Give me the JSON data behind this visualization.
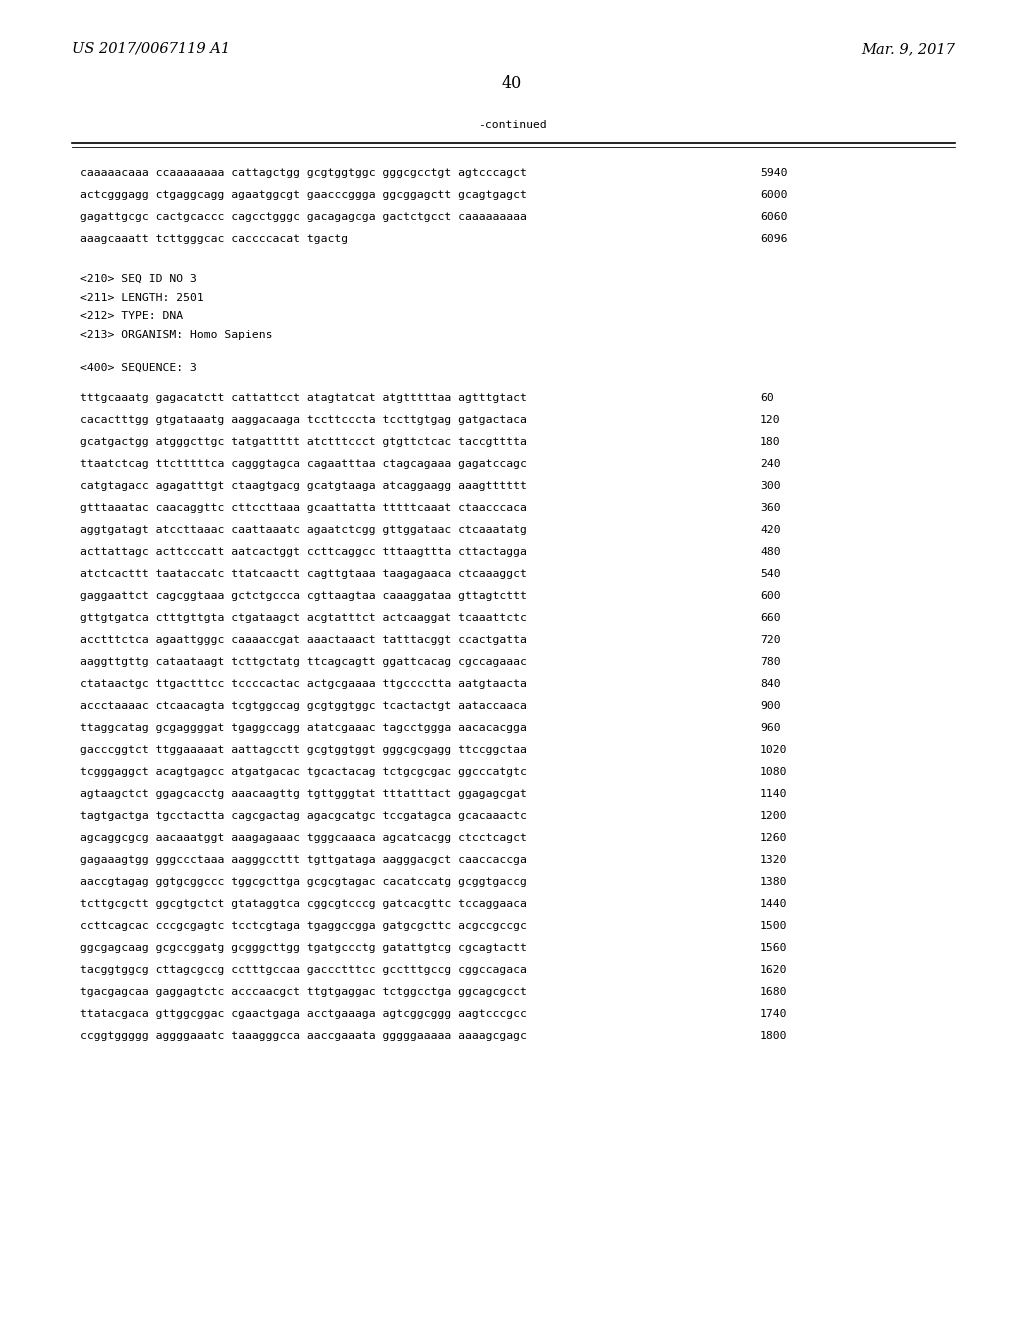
{
  "header_left": "US 2017/0067119 A1",
  "header_right": "Mar. 9, 2017",
  "page_number": "40",
  "continued_label": "-continued",
  "background_color": "#ffffff",
  "text_color": "#000000",
  "font_size_header": 10.5,
  "font_size_body": 8.2,
  "font_size_page": 11.5,
  "sequence_lines_top": [
    [
      "caaaaacaaa ccaaaaaaaa cattagctgg gcgtggtggc gggcgcctgt agtcccagct",
      "5940"
    ],
    [
      "actcgggagg ctgaggcagg agaatggcgt gaacccggga ggcggagctt gcagtgagct",
      "6000"
    ],
    [
      "gagattgcgc cactgcaccc cagcctgggc gacagagcga gactctgcct caaaaaaaaa",
      "6060"
    ],
    [
      "aaagcaaatt tcttgggcac caccccacat tgactg",
      "6096"
    ]
  ],
  "seq_info_lines": [
    "<210> SEQ ID NO 3",
    "<211> LENGTH: 2501",
    "<212> TYPE: DNA",
    "<213> ORGANISM: Homo Sapiens"
  ],
  "seq_label": "<400> SEQUENCE: 3",
  "sequence_lines_main": [
    [
      "tttgcaaatg gagacatctt cattattcct atagtatcat atgtttttaa agtttgtact",
      "60"
    ],
    [
      "cacactttgg gtgataaatg aaggacaaga tccttcccta tccttgtgag gatgactaca",
      "120"
    ],
    [
      "gcatgactgg atgggcttgc tatgattttt atctttccct gtgttctcac taccgtttta",
      "180"
    ],
    [
      "ttaatctcag ttctttttca cagggtagca cagaatttaa ctagcagaaa gagatccagc",
      "240"
    ],
    [
      "catgtagacc agagatttgt ctaagtgacg gcatgtaaga atcaggaagg aaagtttttt",
      "300"
    ],
    [
      "gtttaaatac caacaggttc cttccttaaa gcaattatta tttttcaaat ctaacccaca",
      "360"
    ],
    [
      "aggtgatagt atccttaaac caattaaatc agaatctcgg gttggataac ctcaaatatg",
      "420"
    ],
    [
      "acttattagc acttcccatt aatcactggt ccttcaggcc tttaagttta cttactagga",
      "480"
    ],
    [
      "atctcacttt taataccatc ttatcaactt cagttgtaaa taagagaaca ctcaaaggct",
      "540"
    ],
    [
      "gaggaattct cagcggtaaa gctctgccca cgttaagtaa caaaggataa gttagtcttt",
      "600"
    ],
    [
      "gttgtgatca ctttgttgta ctgataagct acgtatttct actcaaggat tcaaattctc",
      "660"
    ],
    [
      "acctttctca agaattgggc caaaaccgat aaactaaact tatttacggt ccactgatta",
      "720"
    ],
    [
      "aaggttgttg cataataagt tcttgctatg ttcagcagtt ggattcacag cgccagaaac",
      "780"
    ],
    [
      "ctataactgc ttgactttcc tccccactac actgcgaaaa ttgcccctta aatgtaacta",
      "840"
    ],
    [
      "accctaaaac ctcaacagta tcgtggccag gcgtggtggc tcactactgt aataccaaca",
      "900"
    ],
    [
      "ttaggcatag gcgaggggat tgaggccagg atatcgaaac tagcctggga aacacacgga",
      "960"
    ],
    [
      "gacccggtct ttggaaaaat aattagcctt gcgtggtggt gggcgcgagg ttccggctaa",
      "1020"
    ],
    [
      "tcgggaggct acagtgagcc atgatgacac tgcactacag tctgcgcgac ggcccatgtc",
      "1080"
    ],
    [
      "agtaagctct ggagcacctg aaacaagttg tgttgggtat tttatttact ggagagcgat",
      "1140"
    ],
    [
      "tagtgactga tgcctactta cagcgactag agacgcatgc tccgatagca gcacaaactc",
      "1200"
    ],
    [
      "agcaggcgcg aacaaatggt aaagagaaac tgggcaaaca agcatcacgg ctcctcagct",
      "1260"
    ],
    [
      "gagaaagtgg gggccctaaa aagggccttt tgttgataga aagggacgct caaccaccga",
      "1320"
    ],
    [
      "aaccgtagag ggtgcggccc tggcgcttga gcgcgtagac cacatccatg gcggtgaccg",
      "1380"
    ],
    [
      "tcttgcgctt ggcgtgctct gtataggtca cggcgtcccg gatcacgttc tccaggaaca",
      "1440"
    ],
    [
      "ccttcagcac cccgcgagtc tcctcgtaga tgaggccgga gatgcgcttc acgccgccgc",
      "1500"
    ],
    [
      "ggcgagcaag gcgccggatg gcgggcttgg tgatgccctg gatattgtcg cgcagtactt",
      "1560"
    ],
    [
      "tacggtggcg cttagcgccg cctttgccaa gaccctttcc gcctttgccg cggccagaca",
      "1620"
    ],
    [
      "tgacgagcaa gaggagtctc acccaacgct ttgtgaggac tctggcctga ggcagcgcct",
      "1680"
    ],
    [
      "ttatacgaca gttggcggac cgaactgaga acctgaaaga agtcggcggg aagtcccgcc",
      "1740"
    ],
    [
      "ccggtggggg aggggaaatc taaagggcca aaccgaaata gggggaaaaa aaaagcgagc",
      "1800"
    ]
  ]
}
